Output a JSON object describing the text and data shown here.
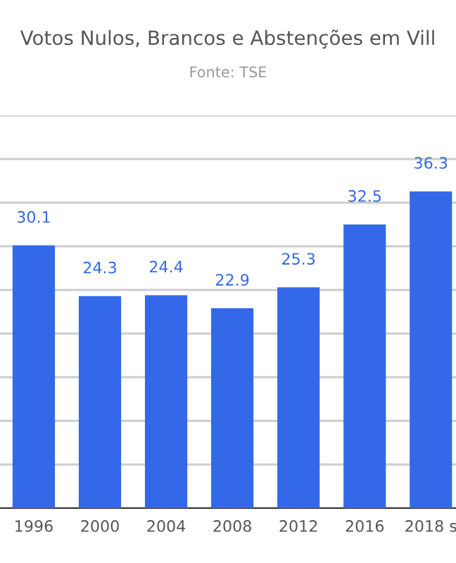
{
  "chart_data": {
    "type": "bar",
    "title": "Votos Nulos, Brancos e Abstenções em Vill",
    "subtitle": "Fonte: TSE",
    "categories": [
      "1996",
      "2000",
      "2004",
      "2008",
      "2012",
      "2016",
      "2018 s"
    ],
    "values": [
      30.1,
      24.3,
      24.4,
      22.9,
      25.3,
      32.5,
      36.3
    ],
    "color": "#3369e8",
    "data_labels": true,
    "ylim": [
      0,
      45
    ],
    "yticks": [
      {
        "value": 0,
        "label": null
      },
      {
        "value": 5,
        "label": null
      },
      {
        "value": 10,
        "label": null
      },
      {
        "value": 15,
        "label": null
      },
      {
        "value": 20,
        "label": null
      },
      {
        "value": 25,
        "label": null
      },
      {
        "value": 30,
        "label": null
      },
      {
        "value": 35,
        "label": null
      },
      {
        "value": 40,
        "label": null
      },
      {
        "value": 45,
        "label": null
      }
    ],
    "grid": "y",
    "tick_labels": "x"
  }
}
